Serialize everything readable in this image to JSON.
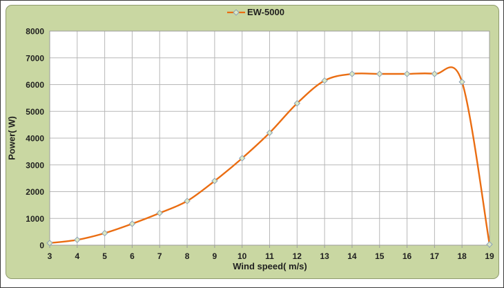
{
  "chart_data": {
    "type": "line",
    "title": "",
    "xlabel": "Wind speed( m/s)",
    "ylabel": "Power( W)",
    "xlim": [
      3,
      19
    ],
    "ylim": [
      0,
      8000
    ],
    "x_ticks": [
      3,
      4,
      5,
      6,
      7,
      8,
      9,
      10,
      11,
      12,
      13,
      14,
      15,
      16,
      17,
      18,
      19
    ],
    "y_ticks": [
      0,
      1000,
      2000,
      3000,
      4000,
      5000,
      6000,
      7000,
      8000
    ],
    "grid": true,
    "smoothed_line": true,
    "legend_position": "top-center",
    "series": [
      {
        "name": "EW-5000",
        "x": [
          3,
          4,
          5,
          6,
          7,
          8,
          9,
          10,
          11,
          12,
          13,
          14,
          15,
          16,
          17,
          18,
          19
        ],
        "values": [
          80,
          200,
          450,
          800,
          1200,
          1650,
          2400,
          3250,
          4200,
          5300,
          6150,
          6400,
          6400,
          6400,
          6400,
          6100,
          30
        ]
      }
    ],
    "style": {
      "line_color": "#ea6d12",
      "marker_shape": "diamond",
      "marker_fill": "#dde8c2",
      "marker_stroke": "#8ba2b8",
      "chart_background": "#c9d7a2",
      "chart_border_color": "#8e9a6d",
      "plot_background": "#ffffff",
      "gridline_color": "#b7b7b7",
      "axis_line_color": "#9b9b9b",
      "text_color": "#1f1f1f"
    }
  }
}
